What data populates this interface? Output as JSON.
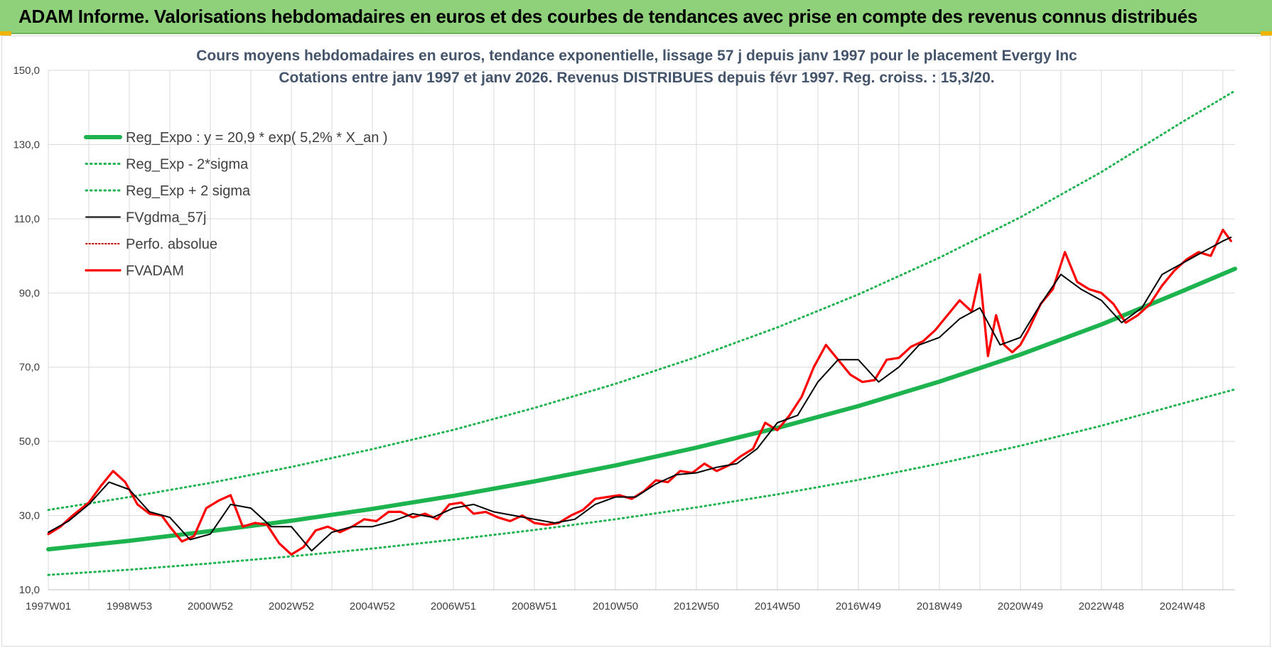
{
  "header": {
    "title": "ADAM Informe. Valorisations hebdomadaires en euros et des courbes de tendances avec prise en compte des revenus connus distribués"
  },
  "colors": {
    "banner": "#8fd07a",
    "trend": "#1db34f",
    "band": "#1db34f",
    "smooth": "#000000",
    "perfo": "#c00000",
    "fvadam": "#ff0000"
  },
  "chart_data": {
    "type": "line",
    "title": [
      "Cours moyens hebdomadaires en euros, tendance exponentielle, lissage 57 j depuis janv 1997 pour le placement Evergy Inc",
      "Cotations entre janv 1997 et janv 2026. Revenus DISTRIBUES depuis févr 1997. Reg. croiss. : 15,3/20."
    ],
    "xlabel": "",
    "ylabel": "",
    "x_range": [
      1997.0,
      2026.3
    ],
    "ylim": [
      10,
      150
    ],
    "grid": true,
    "legend_position": "top-left",
    "y_ticks": [
      "10,0",
      "30,0",
      "50,0",
      "70,0",
      "90,0",
      "110,0",
      "130,0",
      "150,0"
    ],
    "x_ticks": [
      {
        "x": 1997.0,
        "label": "1997W01"
      },
      {
        "x": 1999.0,
        "label": "1998W53"
      },
      {
        "x": 2001.0,
        "label": "2000W52"
      },
      {
        "x": 2003.0,
        "label": "2002W52"
      },
      {
        "x": 2005.0,
        "label": "2004W52"
      },
      {
        "x": 2007.0,
        "label": "2006W51"
      },
      {
        "x": 2009.0,
        "label": "2008W51"
      },
      {
        "x": 2011.0,
        "label": "2010W50"
      },
      {
        "x": 2013.0,
        "label": "2012W50"
      },
      {
        "x": 2015.0,
        "label": "2014W50"
      },
      {
        "x": 2017.0,
        "label": "2016W49"
      },
      {
        "x": 2019.0,
        "label": "2018W49"
      },
      {
        "x": 2021.0,
        "label": "2020W49"
      },
      {
        "x": 2023.0,
        "label": "2022W48"
      },
      {
        "x": 2025.0,
        "label": "2024W48"
      }
    ],
    "series": [
      {
        "name": "Reg_Expo : y = 20,9 * exp( 5,2% *  X_an )",
        "style": "solid-thick",
        "color": "#1db34f",
        "x": [
          1997,
          1999,
          2001,
          2003,
          2005,
          2007,
          2009,
          2011,
          2013,
          2015,
          2017,
          2019,
          2021,
          2023,
          2025,
          2026.3
        ],
        "y": [
          20.9,
          23.2,
          25.8,
          28.6,
          31.8,
          35.3,
          39.2,
          43.5,
          48.3,
          53.6,
          59.5,
          66.1,
          73.4,
          81.5,
          90.5,
          96.5
        ]
      },
      {
        "name": "Reg_Exp - 2*sigma",
        "style": "dotted",
        "color": "#1db34f",
        "x": [
          1997,
          1999,
          2001,
          2003,
          2005,
          2007,
          2009,
          2011,
          2013,
          2015,
          2017,
          2019,
          2021,
          2023,
          2025,
          2026.3
        ],
        "y": [
          14.0,
          15.4,
          17.1,
          19.0,
          21.1,
          23.5,
          26.1,
          29.0,
          32.2,
          35.7,
          39.6,
          44.0,
          48.8,
          54.2,
          60.2,
          64.0
        ]
      },
      {
        "name": "Reg_Exp + 2 sigma",
        "style": "dotted",
        "color": "#1db34f",
        "x": [
          1997,
          1999,
          2001,
          2003,
          2005,
          2007,
          2009,
          2011,
          2013,
          2015,
          2017,
          2019,
          2021,
          2023,
          2025,
          2026.3
        ],
        "y": [
          31.5,
          35.0,
          38.8,
          43.1,
          47.9,
          53.1,
          59.0,
          65.5,
          72.7,
          80.7,
          89.6,
          99.5,
          110.4,
          122.6,
          136.1,
          144.5
        ]
      },
      {
        "name": "FVgdma_57j",
        "style": "solid-thin",
        "color": "#000000",
        "x": [
          1997.0,
          1997.5,
          1998.0,
          1998.5,
          1999.0,
          1999.5,
          2000.0,
          2000.5,
          2001.0,
          2001.5,
          2002.0,
          2002.5,
          2003.0,
          2003.5,
          2004.0,
          2004.5,
          2005.0,
          2005.5,
          2006.0,
          2006.5,
          2007.0,
          2007.5,
          2008.0,
          2008.5,
          2009.0,
          2009.5,
          2010.0,
          2010.5,
          2011.0,
          2011.5,
          2012.0,
          2012.5,
          2013.0,
          2013.5,
          2014.0,
          2014.5,
          2015.0,
          2015.5,
          2016.0,
          2016.5,
          2017.0,
          2017.5,
          2018.0,
          2018.5,
          2019.0,
          2019.5,
          2020.0,
          2020.5,
          2021.0,
          2021.5,
          2022.0,
          2022.5,
          2023.0,
          2023.5,
          2024.0,
          2024.5,
          2025.0,
          2025.5,
          2026.0,
          2026.2
        ],
        "y": [
          25.5,
          28.5,
          33.0,
          39.0,
          37.0,
          31.0,
          29.5,
          23.5,
          25.0,
          33.0,
          32.0,
          27.0,
          27.0,
          20.5,
          25.5,
          27.0,
          27.0,
          28.5,
          30.5,
          29.5,
          32.0,
          33.0,
          31.0,
          30.0,
          29.0,
          28.0,
          29.0,
          33.0,
          35.0,
          35.0,
          38.5,
          41.0,
          41.5,
          43.0,
          44.0,
          48.0,
          55.0,
          57.0,
          66.0,
          72.0,
          72.0,
          66.0,
          70.0,
          76.0,
          78.0,
          83.0,
          86.0,
          76.0,
          78.0,
          87.0,
          95.0,
          91.0,
          88.0,
          82.0,
          86.0,
          95.0,
          98.0,
          101.0,
          104.0,
          105.0
        ]
      },
      {
        "name": "Perfo. absolue",
        "style": "dotted-thin",
        "color": "#c00000",
        "x": [],
        "y": []
      },
      {
        "name": "FVADAM",
        "style": "solid",
        "color": "#ff0000",
        "x": [
          1997.0,
          1997.3,
          1997.6,
          1998.0,
          1998.3,
          1998.6,
          1998.9,
          1999.2,
          1999.5,
          1999.8,
          2000.0,
          2000.3,
          2000.6,
          2000.9,
          2001.2,
          2001.5,
          2001.8,
          2002.1,
          2002.4,
          2002.7,
          2003.0,
          2003.3,
          2003.6,
          2003.9,
          2004.2,
          2004.5,
          2004.8,
          2005.1,
          2005.4,
          2005.7,
          2006.0,
          2006.3,
          2006.6,
          2006.9,
          2007.2,
          2007.5,
          2007.8,
          2008.1,
          2008.4,
          2008.7,
          2009.0,
          2009.3,
          2009.6,
          2009.9,
          2010.2,
          2010.5,
          2010.8,
          2011.1,
          2011.4,
          2011.7,
          2012.0,
          2012.3,
          2012.6,
          2012.9,
          2013.2,
          2013.5,
          2013.8,
          2014.1,
          2014.4,
          2014.7,
          2015.0,
          2015.3,
          2015.6,
          2015.9,
          2016.2,
          2016.5,
          2016.8,
          2017.1,
          2017.4,
          2017.7,
          2018.0,
          2018.3,
          2018.6,
          2018.9,
          2019.2,
          2019.5,
          2019.8,
          2020.0,
          2020.2,
          2020.4,
          2020.6,
          2020.8,
          2021.0,
          2021.2,
          2021.5,
          2021.8,
          2022.1,
          2022.4,
          2022.7,
          2023.0,
          2023.3,
          2023.6,
          2023.9,
          2024.2,
          2024.5,
          2024.8,
          2025.1,
          2025.4,
          2025.7,
          2026.0,
          2026.2
        ],
        "y": [
          25.0,
          27.0,
          30.0,
          33.5,
          38.0,
          42.0,
          39.0,
          33.0,
          30.5,
          30.0,
          27.0,
          23.0,
          24.5,
          32.0,
          34.0,
          35.5,
          27.0,
          28.0,
          27.5,
          22.5,
          19.5,
          21.5,
          26.0,
          27.0,
          25.5,
          27.0,
          29.0,
          28.5,
          31.0,
          31.0,
          29.5,
          30.5,
          29.0,
          33.0,
          33.5,
          30.5,
          31.0,
          29.5,
          28.5,
          30.0,
          28.0,
          27.5,
          28.0,
          30.0,
          31.5,
          34.5,
          35.0,
          35.5,
          34.5,
          36.5,
          39.5,
          39.0,
          42.0,
          41.5,
          44.0,
          42.0,
          43.5,
          46.0,
          48.0,
          55.0,
          53.0,
          57.0,
          62.0,
          70.0,
          76.0,
          72.0,
          68.0,
          66.0,
          66.5,
          72.0,
          72.5,
          75.5,
          77.0,
          80.0,
          84.0,
          88.0,
          85.0,
          95.0,
          73.0,
          84.0,
          76.0,
          74.0,
          76.0,
          80.0,
          87.0,
          91.0,
          101.0,
          93.0,
          91.0,
          90.0,
          87.0,
          82.0,
          84.0,
          87.0,
          92.0,
          96.0,
          99.0,
          101.0,
          100.0,
          107.0,
          104.0
        ]
      }
    ]
  }
}
